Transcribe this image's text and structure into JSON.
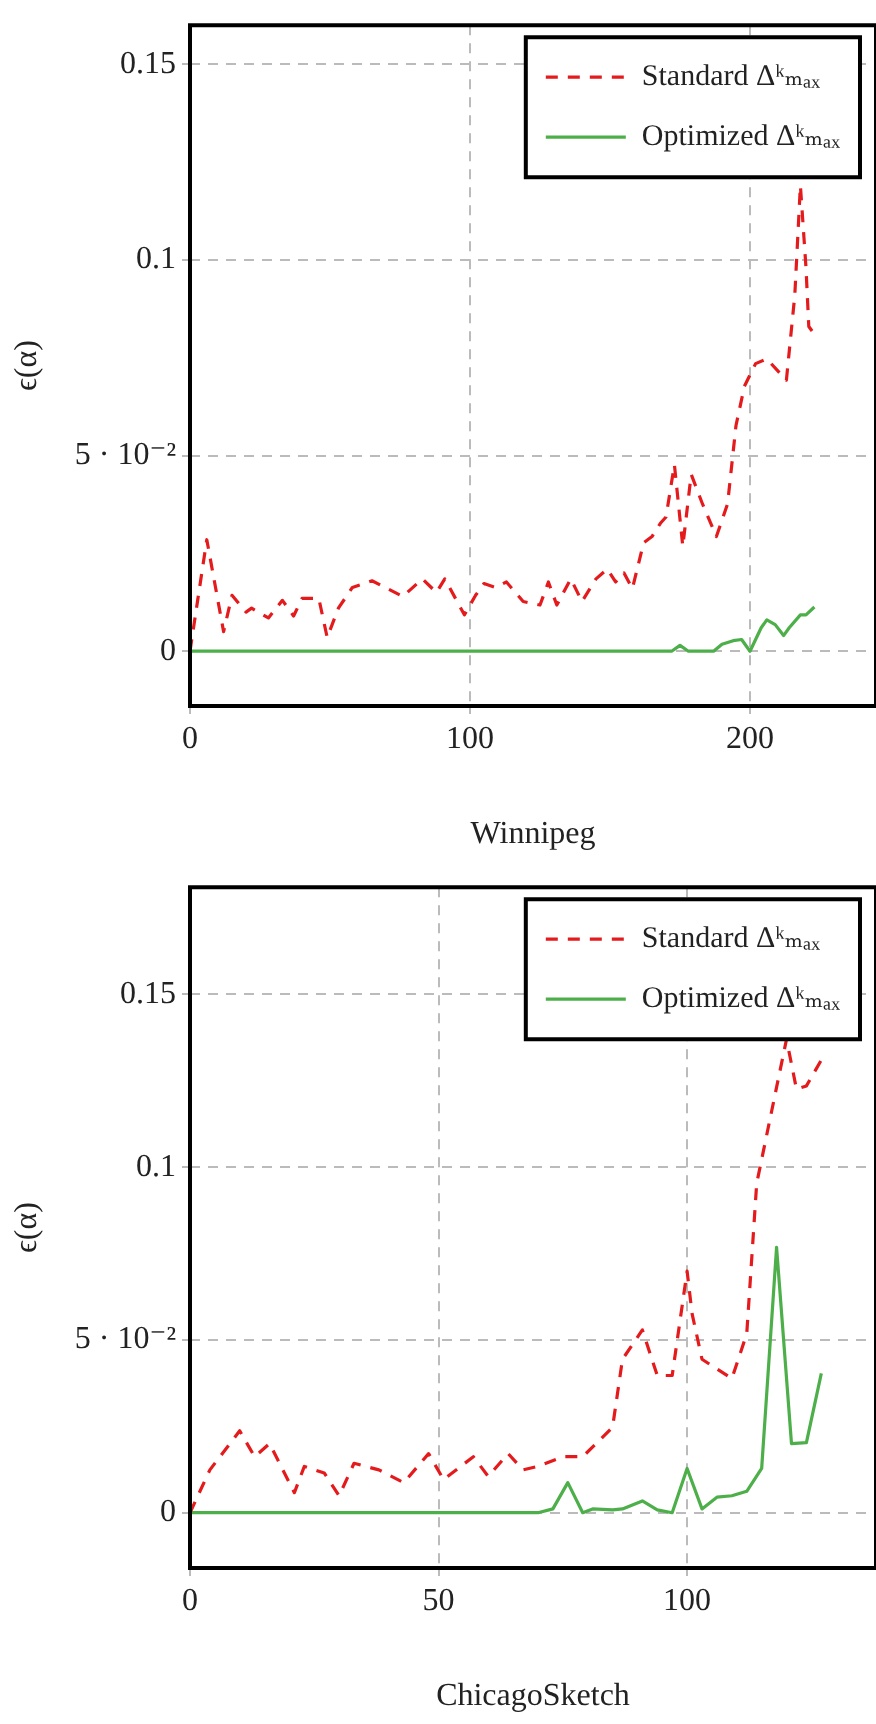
{
  "chart_data": [
    {
      "type": "line",
      "xlabel": "Winnipeg",
      "ylabel": "ϵ(α)",
      "xlim": [
        0,
        245
      ],
      "ylim": [
        -0.014,
        0.16
      ],
      "xticks": [
        0,
        100,
        200
      ],
      "yticks": [
        0,
        {
          "value": 0.05,
          "label": "5 · 10⁻²"
        },
        0.1,
        0.15
      ],
      "grid": true,
      "legend": "top right",
      "marker": "none",
      "series": [
        {
          "name": "Standard Δᵏₘₐₓ",
          "color": "#e41a1c",
          "line_style": "dashed",
          "x": [
            0,
            6,
            12,
            15,
            20,
            22,
            28,
            33,
            37,
            40,
            46,
            49,
            53,
            58,
            65,
            76,
            83,
            88,
            91,
            98,
            102,
            105,
            109,
            113,
            119,
            125,
            128,
            131,
            136,
            140,
            145,
            149,
            152,
            155,
            158,
            162,
            165,
            168,
            170,
            173,
            176,
            179,
            183,
            188,
            192,
            195,
            198,
            202,
            206,
            213,
            216,
            218,
            219,
            220,
            221,
            223
          ],
          "values": [
            0,
            0.0285,
            0.005,
            0.0143,
            0.01,
            0.011,
            0.0085,
            0.013,
            0.009,
            0.0135,
            0.0135,
            0.0035,
            0.011,
            0.0163,
            0.018,
            0.014,
            0.0185,
            0.015,
            0.0185,
            0.0093,
            0.0143,
            0.0173,
            0.0163,
            0.0177,
            0.0127,
            0.0118,
            0.0177,
            0.0118,
            0.0185,
            0.0127,
            0.0185,
            0.021,
            0.0177,
            0.02,
            0.016,
            0.0277,
            0.0293,
            0.0327,
            0.0343,
            0.0477,
            0.0268,
            0.0452,
            0.0377,
            0.0293,
            0.0377,
            0.0577,
            0.0677,
            0.0735,
            0.0747,
            0.0693,
            0.091,
            0.119,
            null,
            0.098,
            0.083,
            0.081
          ]
        },
        {
          "name": "Optimized Δᵏₘₐₓ",
          "color": "#4daf4a",
          "line_style": "solid",
          "x": [
            0,
            172,
            175,
            178,
            187,
            190,
            194,
            197,
            200,
            204,
            206,
            209,
            212,
            214,
            218,
            220,
            223
          ],
          "values": [
            0,
            0,
            0.0015,
            0,
            0,
            0.0018,
            0.0027,
            0.003,
            0,
            0.006,
            0.008,
            0.0068,
            0.004,
            0.006,
            0.0093,
            0.0093,
            0.0113
          ]
        }
      ]
    },
    {
      "type": "line",
      "xlabel": "ChicagoSketch",
      "ylabel": "ϵ(α)",
      "xlim": [
        0,
        138
      ],
      "ylim": [
        -0.016,
        0.181
      ],
      "xticks": [
        0,
        50,
        100
      ],
      "yticks": [
        0,
        {
          "value": 0.05,
          "label": "5 · 10⁻²"
        },
        0.1,
        0.15
      ],
      "grid": true,
      "legend": "top right",
      "marker": "none",
      "series": [
        {
          "name": "Standard Δᵏₘₐₓ",
          "color": "#e41a1c",
          "line_style": "dashed",
          "x": [
            0,
            4,
            10,
            13,
            16,
            21,
            23,
            27,
            30,
            33,
            38,
            43,
            48,
            51,
            57,
            60,
            64,
            67,
            70,
            75,
            79,
            85,
            87,
            91,
            94,
            97,
            100,
            101,
            103,
            109,
            112,
            114,
            117,
            119,
            120,
            122,
            124,
            127
          ],
          "values": [
            0,
            0.0124,
            0.0237,
            0.0162,
            0.02,
            0.0058,
            0.0134,
            0.0115,
            0.0049,
            0.0143,
            0.0124,
            0.0087,
            0.0171,
            0.0096,
            0.0162,
            0.0105,
            0.0171,
            0.0124,
            0.0134,
            0.0162,
            0.0162,
            0.0247,
            0.0444,
            0.0529,
            0.0397,
            0.0397,
            0.0699,
            0.0576,
            0.0444,
            0.0388,
            0.0518,
            0.0953,
            null,
            null,
            0.137,
            0.1226,
            0.1235,
            0.131
          ]
        },
        {
          "name": "Optimized Δᵏₘₐₓ",
          "color": "#4daf4a",
          "line_style": "solid",
          "x": [
            0,
            70,
            73,
            76,
            79,
            81,
            85,
            87,
            91,
            94,
            97,
            100,
            103,
            106,
            109,
            112,
            115,
            118,
            121,
            124,
            127
          ],
          "values": [
            0,
            0,
            0.0011,
            0.0087,
            0,
            0.0011,
            0.0008,
            0.0011,
            0.0034,
            0.0008,
            0,
            0.0128,
            0.0011,
            0.0045,
            0.0049,
            0.0062,
            0.0128,
            0.0768,
            0.02,
            0.0203,
            0.0403
          ]
        }
      ]
    }
  ]
}
